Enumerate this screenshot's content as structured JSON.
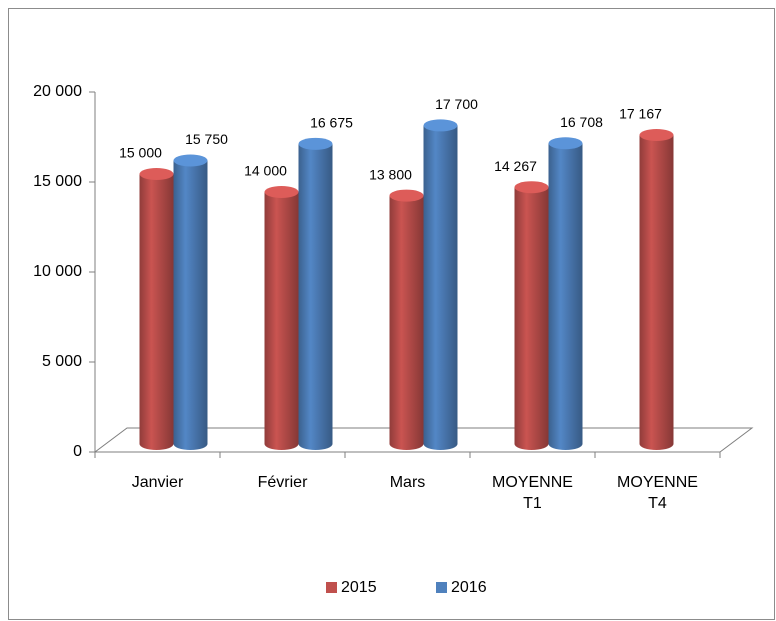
{
  "chart_data": {
    "type": "bar3d",
    "categories": [
      "Janvier",
      "Février",
      "Mars",
      "MOYENNE T1",
      "MOYENNE T4"
    ],
    "series": [
      {
        "name": "2015",
        "color": "#c0504d",
        "values": [
          15000,
          14000,
          13800,
          14267,
          17167
        ],
        "value_labels": [
          "15 000",
          "14 000",
          "13 800",
          "14 267",
          "17 167"
        ]
      },
      {
        "name": "2016",
        "color": "#4f81bd",
        "values": [
          15750,
          16675,
          17700,
          16708,
          null
        ],
        "value_labels": [
          "15 750",
          "16 675",
          "17 700",
          "16 708",
          null
        ]
      }
    ],
    "ylim": [
      0,
      20000
    ],
    "yticks": [
      0,
      {
        "value": 5000,
        "label": "5 000"
      },
      {
        "value": 10000,
        "label": "10 000"
      },
      {
        "value": 15000,
        "label": "15 000"
      },
      {
        "value": 20000,
        "label": "20 000"
      }
    ],
    "legend": "bottom"
  }
}
